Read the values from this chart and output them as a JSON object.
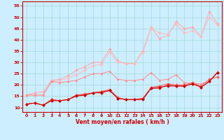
{
  "xlabel": "Vent moyen/en rafales ( km/h )",
  "bg_color": "#cceeff",
  "grid_color": "#aadddd",
  "x_values": [
    0,
    1,
    2,
    3,
    4,
    5,
    6,
    7,
    8,
    9,
    10,
    11,
    12,
    13,
    14,
    15,
    16,
    17,
    18,
    19,
    20,
    21,
    22,
    23
  ],
  "series": [
    {
      "color": "#ffaaaa",
      "y": [
        15.5,
        16.5,
        17.0,
        22.0,
        22.5,
        24.0,
        26.5,
        28.0,
        30.0,
        30.0,
        36.0,
        30.5,
        29.5,
        29.5,
        35.0,
        45.5,
        40.5,
        42.0,
        48.0,
        45.0,
        45.5,
        41.5,
        52.5,
        47.0
      ]
    },
    {
      "color": "#ffbbbb",
      "y": [
        15.5,
        15.5,
        15.5,
        21.5,
        22.0,
        23.0,
        24.5,
        26.5,
        28.5,
        29.0,
        34.5,
        30.0,
        29.5,
        29.5,
        34.5,
        45.0,
        43.0,
        42.5,
        47.0,
        43.0,
        44.0,
        41.5,
        50.0,
        46.5
      ]
    },
    {
      "color": "#ff8888",
      "y": [
        15.5,
        15.5,
        15.5,
        21.5,
        21.0,
        21.5,
        22.0,
        23.5,
        25.0,
        25.0,
        26.0,
        22.5,
        22.0,
        22.0,
        22.5,
        25.5,
        22.0,
        22.5,
        24.5,
        21.0,
        20.5,
        20.5,
        21.5,
        26.0
      ]
    },
    {
      "color": "#ff5555",
      "y": [
        11.5,
        12.0,
        11.0,
        13.5,
        13.0,
        13.5,
        15.5,
        16.0,
        16.5,
        17.0,
        18.0,
        14.5,
        13.5,
        13.5,
        14.0,
        19.0,
        19.5,
        20.5,
        20.0,
        20.0,
        21.0,
        19.5,
        22.5,
        23.5
      ]
    },
    {
      "color": "#ee2222",
      "y": [
        11.5,
        12.0,
        11.0,
        13.5,
        13.0,
        13.5,
        15.5,
        15.5,
        16.5,
        17.0,
        17.5,
        14.0,
        13.5,
        13.5,
        14.0,
        18.5,
        18.5,
        20.0,
        19.5,
        19.5,
        20.5,
        19.0,
        21.5,
        25.5
      ]
    },
    {
      "color": "#cc0000",
      "y": [
        11.5,
        12.0,
        11.0,
        13.0,
        13.0,
        13.5,
        15.0,
        15.5,
        16.5,
        16.5,
        17.5,
        14.0,
        13.5,
        13.5,
        13.5,
        18.5,
        19.0,
        19.5,
        19.5,
        19.5,
        20.5,
        19.0,
        21.5,
        25.5
      ]
    }
  ],
  "ylim": [
    8,
    57
  ],
  "yticks": [
    10,
    15,
    20,
    25,
    30,
    35,
    40,
    45,
    50,
    55
  ],
  "xticks": [
    0,
    1,
    2,
    3,
    4,
    5,
    6,
    7,
    8,
    9,
    10,
    11,
    12,
    13,
    14,
    15,
    16,
    17,
    18,
    19,
    20,
    21,
    22,
    23
  ],
  "markersize": 2.0,
  "linewidth": 0.7,
  "axis_color": "#cc0000",
  "tick_color": "#cc0000",
  "label_color": "#cc0000"
}
